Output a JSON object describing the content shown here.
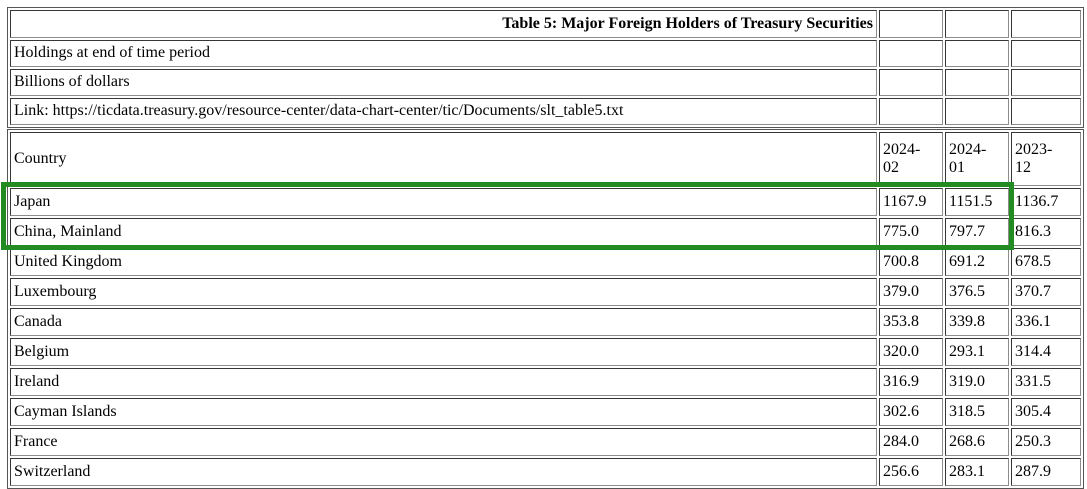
{
  "header": {
    "title": "Table 5: Major Foreign Holders of Treasury Securities"
  },
  "meta_rows": {
    "holdings": "Holdings at end of time period",
    "units": "Billions of dollars",
    "link": "Link: https://ticdata.treasury.gov/resource-center/data-chart-center/tic/Documents/slt_table5.txt"
  },
  "table": {
    "country_header": "Country",
    "period_headers": [
      "2024-\n02",
      "2024-\n01",
      "2023-\n12"
    ],
    "rows": [
      {
        "country": "Japan",
        "values": [
          "1167.9",
          "1151.5",
          "1136.7"
        ]
      },
      {
        "country": "China, Mainland",
        "values": [
          "775.0",
          "797.7",
          "816.3"
        ]
      },
      {
        "country": "United Kingdom",
        "values": [
          "700.8",
          "691.2",
          "678.5"
        ]
      },
      {
        "country": "Luxembourg",
        "values": [
          "379.0",
          "376.5",
          "370.7"
        ]
      },
      {
        "country": "Canada",
        "values": [
          "353.8",
          "339.8",
          "336.1"
        ]
      },
      {
        "country": "Belgium",
        "values": [
          "320.0",
          "293.1",
          "314.4"
        ]
      },
      {
        "country": "Ireland",
        "values": [
          "316.9",
          "319.0",
          "331.5"
        ]
      },
      {
        "country": "Cayman Islands",
        "values": [
          "302.6",
          "318.5",
          "305.4"
        ]
      },
      {
        "country": "France",
        "values": [
          "284.0",
          "268.6",
          "250.3"
        ]
      },
      {
        "country": "Switzerland",
        "values": [
          "256.6",
          "283.1",
          "287.9"
        ]
      }
    ]
  },
  "highlight": {
    "color": "#228B22",
    "rows_covered": [
      "Japan",
      "China, Mainland"
    ],
    "columns_covered": [
      "Country",
      "2024-02",
      "2024-01"
    ]
  }
}
